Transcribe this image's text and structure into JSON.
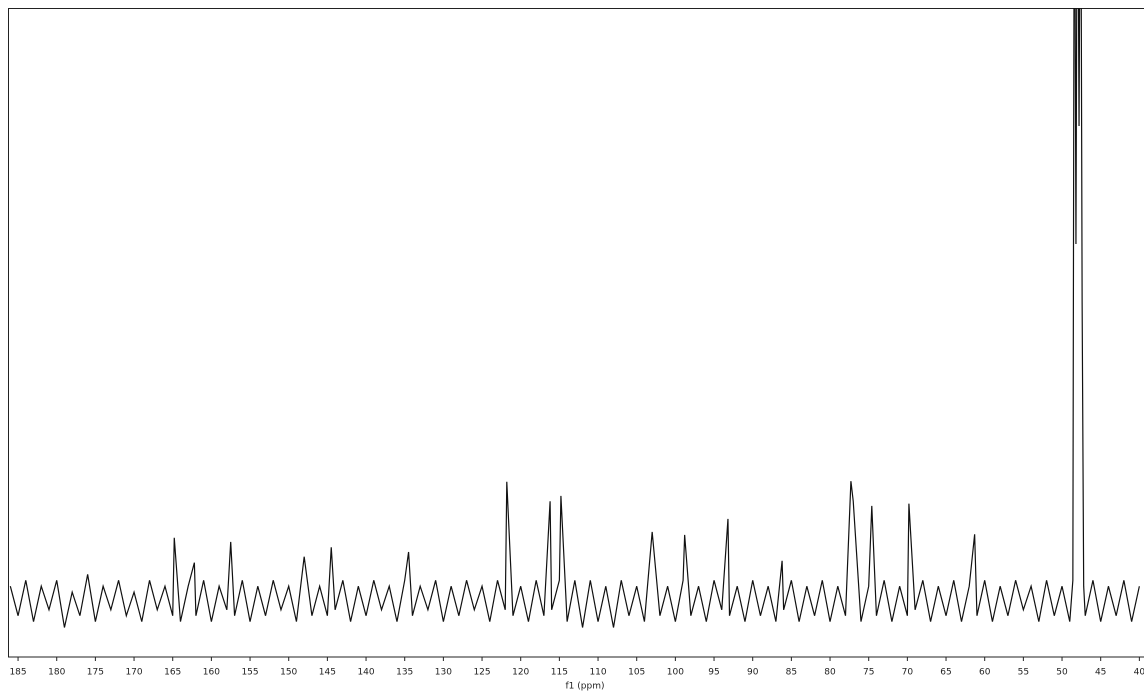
{
  "chart_data": {
    "type": "line",
    "x_label": "f1 (ppm)",
    "x": [
      186,
      185,
      184,
      183,
      182,
      181,
      180,
      179,
      178,
      177,
      176,
      175,
      174,
      173,
      172,
      171,
      170,
      169,
      168,
      167,
      166,
      165,
      164.8,
      164,
      163,
      162.2,
      162,
      161,
      160,
      159,
      158,
      157.5,
      157,
      156,
      155,
      154,
      153,
      152,
      151,
      150,
      149,
      148,
      147,
      146,
      145,
      144.5,
      144,
      143,
      142,
      141,
      140,
      139,
      138,
      137,
      136,
      135,
      134.5,
      134,
      133,
      132,
      131,
      130,
      129,
      128,
      127,
      126,
      125,
      124,
      123,
      122,
      121.8,
      121,
      120,
      119,
      118,
      117,
      116.2,
      116,
      115,
      114.8,
      114,
      113,
      112,
      111,
      110,
      109,
      108,
      107,
      106,
      105,
      104,
      103,
      102,
      101,
      100,
      99,
      98.8,
      98,
      97,
      96,
      95,
      94,
      93.2,
      93,
      92,
      91,
      90,
      89,
      88,
      87,
      86.2,
      86,
      85,
      84,
      83,
      82,
      81,
      80,
      79,
      78,
      77.3,
      77,
      76,
      75,
      74.6,
      74,
      73,
      72,
      71,
      70,
      69.8,
      69,
      68,
      67,
      66,
      65,
      64,
      63,
      62,
      61.3,
      61,
      60,
      59,
      58,
      57,
      56,
      55,
      54,
      53,
      52,
      51,
      50,
      49,
      48.6,
      48.4,
      48.2,
      48,
      47.8,
      47.6,
      47.4,
      47.2,
      47,
      46,
      45,
      44,
      43,
      42,
      41,
      40
    ],
    "values": [
      2,
      -3,
      3,
      -4,
      2,
      -2,
      3,
      -5,
      1,
      -3,
      4,
      -4,
      2,
      -2,
      3,
      -3,
      1,
      -4,
      3,
      -2,
      2,
      -3,
      10.2,
      -4,
      2,
      6,
      -3,
      3,
      -4,
      2,
      -2,
      9.5,
      -3,
      3,
      -4,
      2,
      -3,
      3,
      -2,
      2,
      -4,
      7,
      -3,
      2,
      -3,
      8.6,
      -2,
      3,
      -4,
      2,
      -3,
      3,
      -2,
      2,
      -4,
      3,
      7.8,
      -3,
      2,
      -2,
      3,
      -4,
      2,
      -3,
      3,
      -2,
      2,
      -4,
      3,
      -2,
      19.7,
      -3,
      2,
      -4,
      3,
      -3,
      16.4,
      -2,
      3,
      17.3,
      -4,
      3,
      -5,
      3,
      -4,
      2,
      -5,
      3,
      -3,
      2,
      -4,
      11.2,
      -3,
      2,
      -4,
      3,
      10.7,
      -3,
      2,
      -4,
      3,
      -2,
      13.4,
      -3,
      2,
      -4,
      3,
      -3,
      2,
      -4,
      6.3,
      -2,
      3,
      -4,
      2,
      -3,
      3,
      -4,
      2,
      -3,
      19.8,
      16.4,
      -4,
      2,
      15.6,
      -3,
      3,
      -4,
      2,
      -3,
      16,
      -2,
      3,
      -4,
      2,
      -3,
      3,
      -4,
      2,
      10.8,
      -3,
      3,
      -4,
      2,
      -3,
      3,
      -2,
      2,
      -4,
      3,
      -3,
      2,
      -4,
      3,
      140,
      60,
      140,
      80,
      140,
      50,
      2,
      -3,
      3,
      -4,
      2,
      -3,
      3,
      -4,
      2
    ],
    "color": "#111111",
    "xlim": [
      186.3,
      39.4
    ],
    "xticks": [
      185,
      180,
      175,
      170,
      165,
      160,
      155,
      150,
      145,
      140,
      135,
      130,
      125,
      120,
      115,
      110,
      105,
      100,
      95,
      90,
      85,
      80,
      75,
      70,
      65,
      60,
      55,
      50,
      45,
      40
    ],
    "ylim": [
      -10,
      100
    ]
  }
}
